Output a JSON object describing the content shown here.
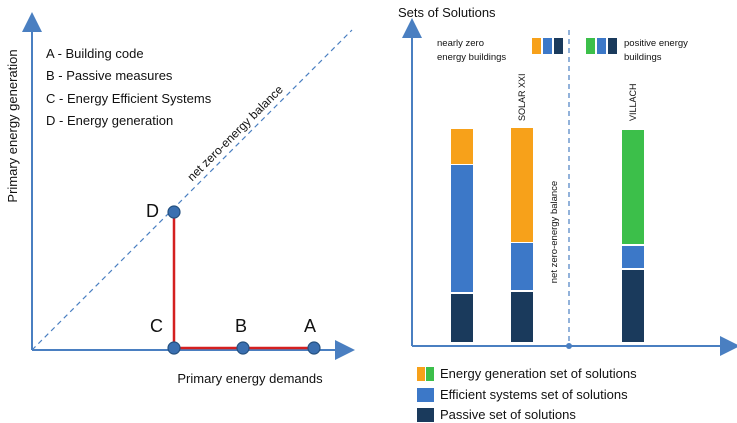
{
  "left_diagram": {
    "y_axis_label": "Primary energy generation",
    "x_axis_label": "Primary energy demands",
    "diagonal_label": "net zero-energy balance",
    "legend": [
      "A - Building code",
      "B - Passive measures",
      "C - Energy Efficient Systems",
      "D - Energy generation"
    ],
    "points": {
      "A": "A",
      "B": "B",
      "C": "C",
      "D": "D"
    },
    "colors": {
      "axis": "#4a7fc1",
      "path": "#d42020",
      "point": "#3a6fb0"
    }
  },
  "right_diagram": {
    "title": "Sets of Solutions",
    "left_region_label_1": "nearly zero",
    "left_region_label_2": "energy buildings",
    "right_region_label_1": "positive energy",
    "right_region_label_2": "buildings",
    "divider_label": "net zero-energy balance",
    "bar_label_solar": "SOLAR XXI",
    "bar_label_villach": "VILLACH",
    "legend": [
      "Energy generation set of solutions",
      "Efficient systems set of solutions",
      "Passive set of solutions"
    ],
    "colors": {
      "generation_orange": "#f7a11a",
      "generation_green": "#3cbf4a",
      "efficient": "#3c78c8",
      "passive": "#1a3a5c",
      "axis": "#4a7fc1"
    }
  }
}
